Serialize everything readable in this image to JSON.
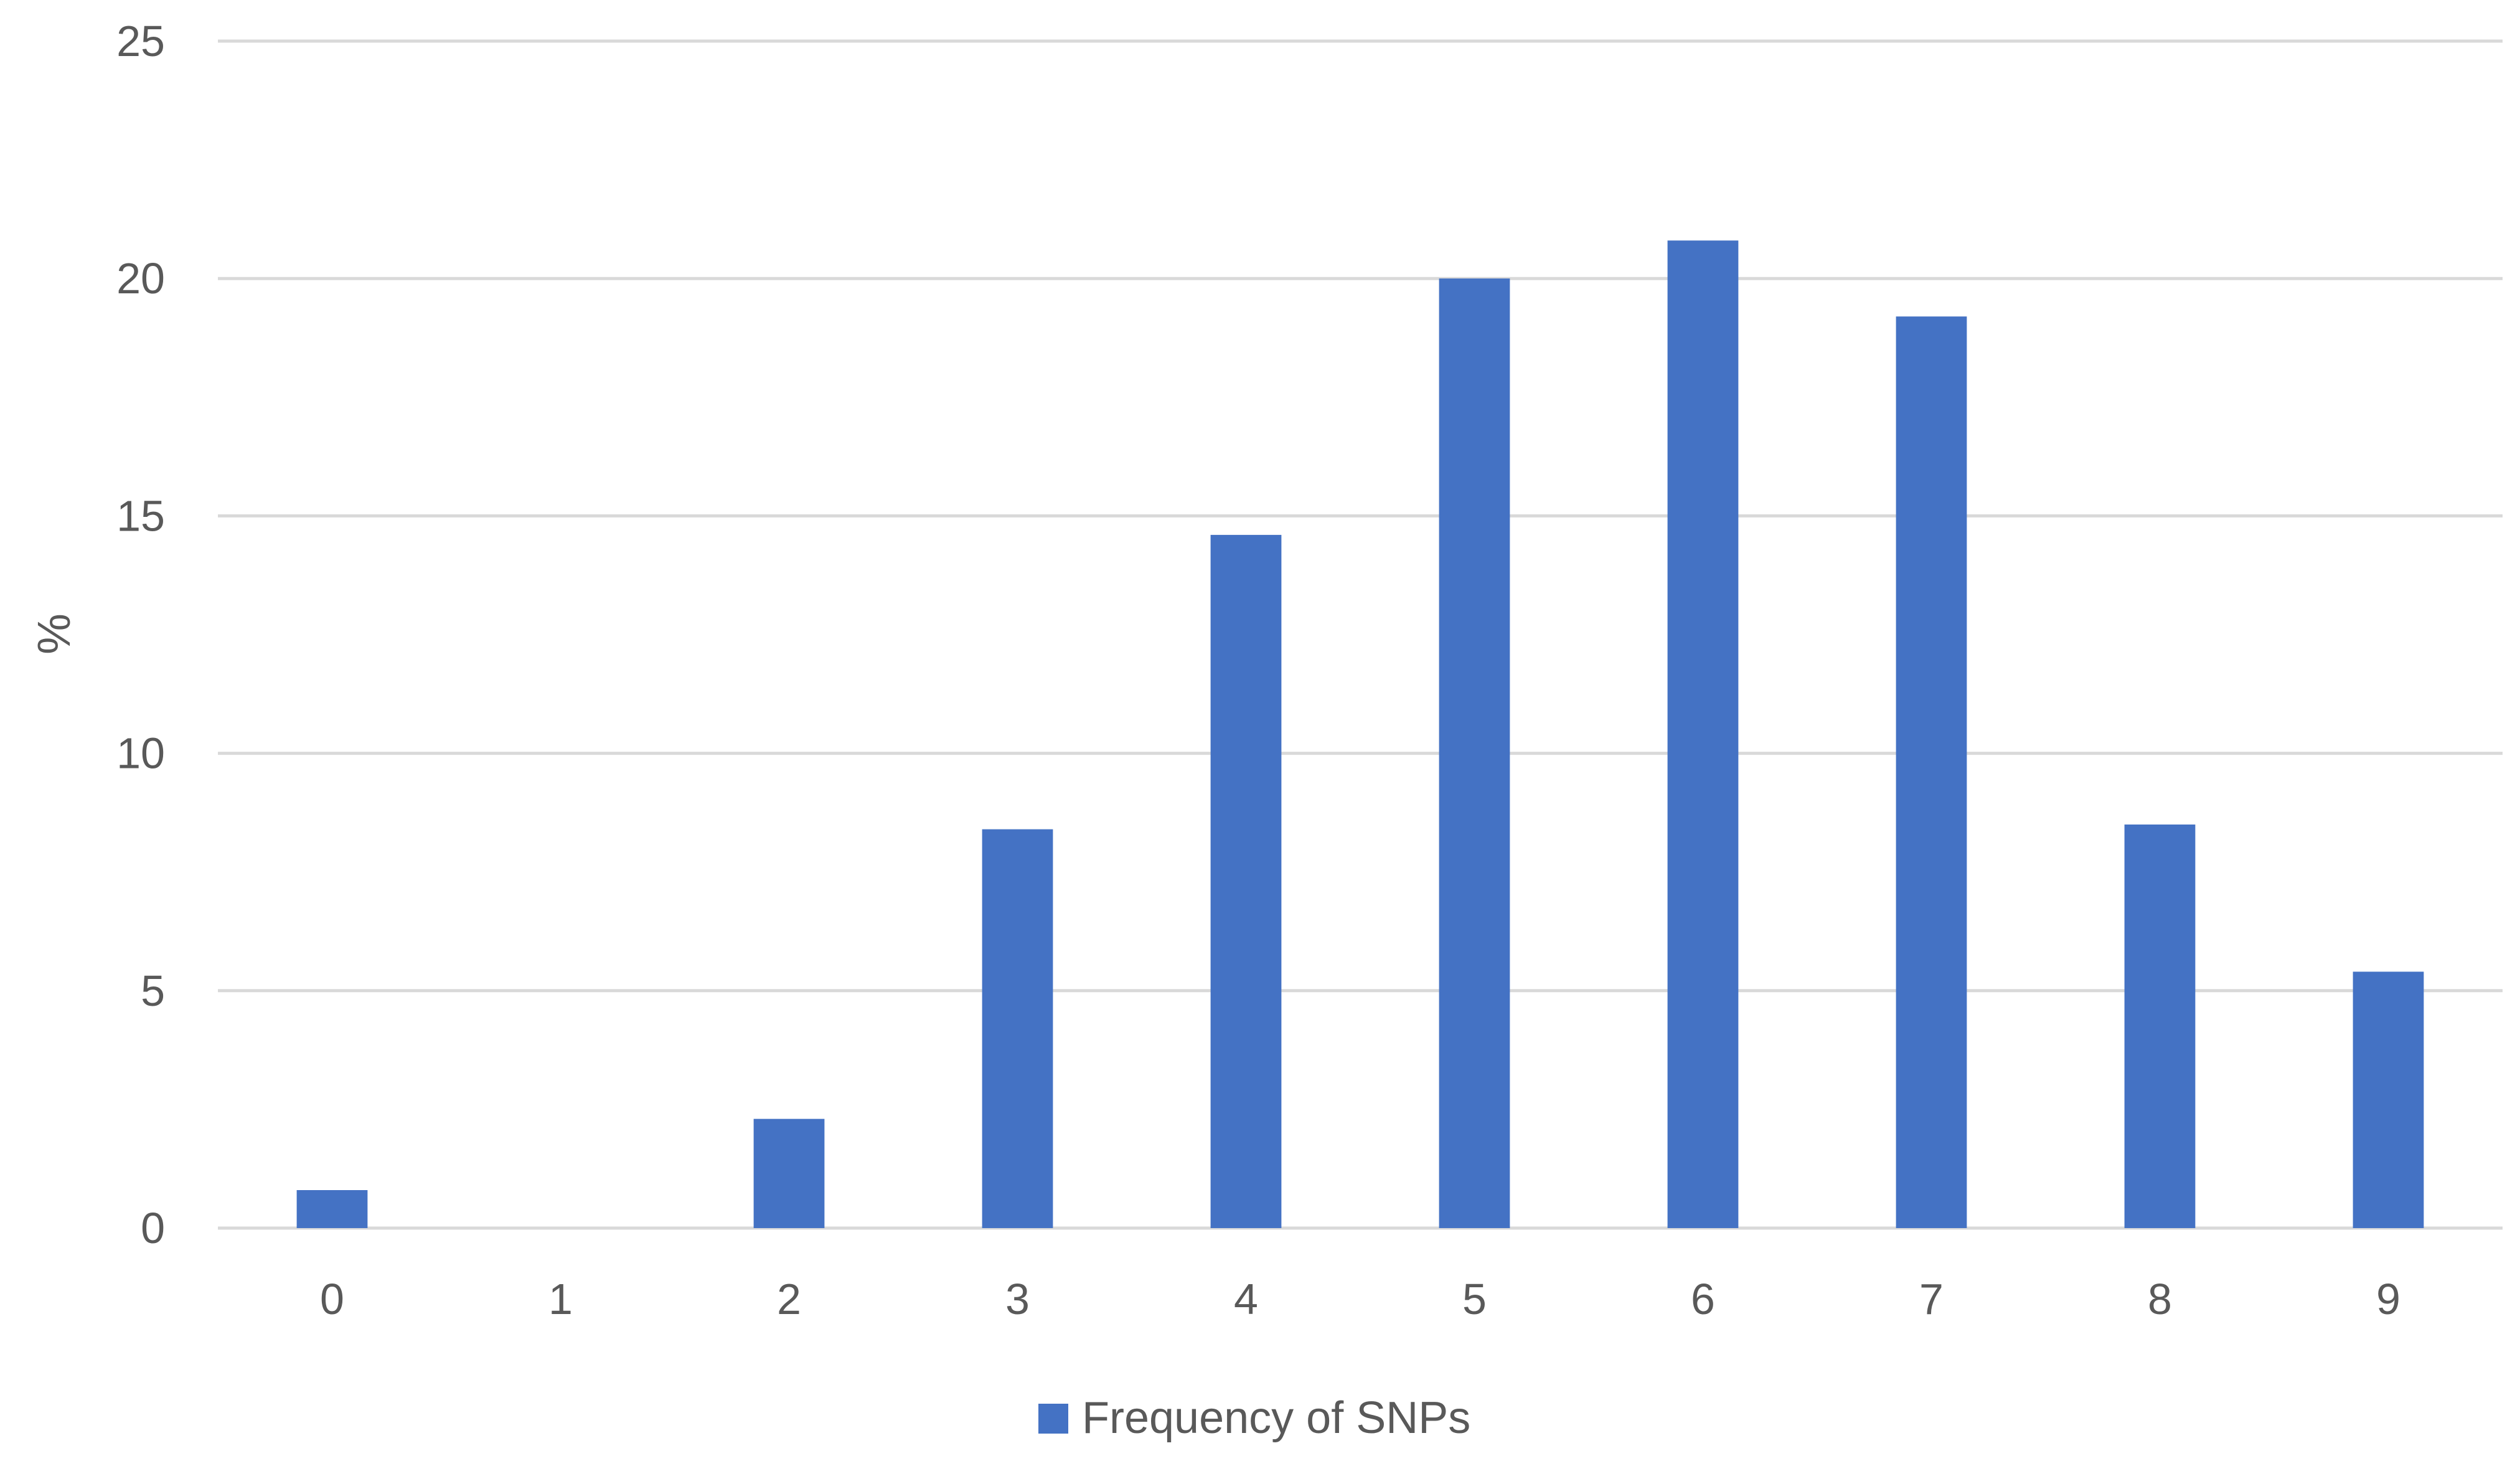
{
  "chart_data": {
    "type": "bar",
    "categories": [
      "0",
      "1",
      "2",
      "3",
      "4",
      "5",
      "6",
      "7",
      "8",
      "9"
    ],
    "series": [
      {
        "name": "Frequency of SNPs",
        "color": "#4472c4",
        "values": [
          0.8,
          0,
          2.3,
          8.4,
          14.6,
          20.0,
          20.8,
          19.2,
          8.5,
          5.4
        ]
      }
    ],
    "title": "",
    "xlabel": "",
    "ylabel": "%",
    "ylim": [
      0,
      25
    ],
    "yticks": [
      0,
      5,
      10,
      15,
      20,
      25
    ],
    "grid": true,
    "legend": "bottom-center",
    "colors": {
      "bar": "#4472c4",
      "gridline": "#d9d9d9",
      "text": "#595959"
    }
  }
}
